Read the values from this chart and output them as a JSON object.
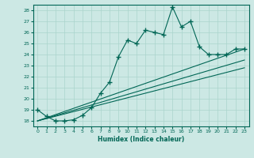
{
  "xlabel": "Humidex (Indice chaleur)",
  "background_color": "#cce8e4",
  "grid_color": "#aad4cc",
  "line_color": "#006655",
  "xlim": [
    -0.5,
    23.5
  ],
  "ylim": [
    17.5,
    28.5
  ],
  "yticks": [
    18,
    19,
    20,
    21,
    22,
    23,
    24,
    25,
    26,
    27,
    28
  ],
  "xticks": [
    0,
    1,
    2,
    3,
    4,
    5,
    6,
    7,
    8,
    9,
    10,
    11,
    12,
    13,
    14,
    15,
    16,
    17,
    18,
    19,
    20,
    21,
    22,
    23
  ],
  "main_x": [
    0,
    1,
    2,
    3,
    4,
    5,
    6,
    7,
    8,
    9,
    10,
    11,
    12,
    13,
    14,
    15,
    16,
    17,
    18,
    19,
    20,
    21,
    22,
    23
  ],
  "main_y": [
    19.0,
    18.4,
    18.0,
    18.0,
    18.1,
    18.5,
    19.2,
    20.5,
    21.5,
    23.8,
    25.3,
    25.0,
    26.2,
    26.0,
    25.8,
    28.3,
    26.5,
    27.0,
    24.7,
    24.0,
    24.0,
    24.0,
    24.5,
    24.5
  ],
  "line1_x": [
    0,
    23
  ],
  "line1_y": [
    18.0,
    22.8
  ],
  "line2_x": [
    0,
    23
  ],
  "line2_y": [
    18.0,
    23.5
  ],
  "line3_x": [
    0,
    23
  ],
  "line3_y": [
    18.0,
    24.5
  ]
}
